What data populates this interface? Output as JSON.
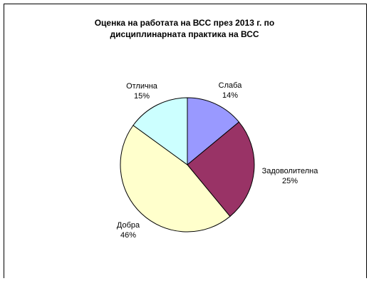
{
  "chart_data": {
    "type": "pie",
    "title_lines": [
      "Оценка на работата на ВСС през 2013 г. по",
      "дисциплинарната практика на ВСС"
    ],
    "categories": [
      "Слаба",
      "Задоволителна",
      "Добра",
      "Отлична"
    ],
    "values": [
      14,
      25,
      46,
      15
    ],
    "value_labels": [
      "14%",
      "25%",
      "46%",
      "15%"
    ],
    "colors": [
      "#9999FF",
      "#993366",
      "#FFFFCC",
      "#CCFFFF"
    ],
    "start": "12 o'clock",
    "direction": "clockwise",
    "legend": "none"
  }
}
